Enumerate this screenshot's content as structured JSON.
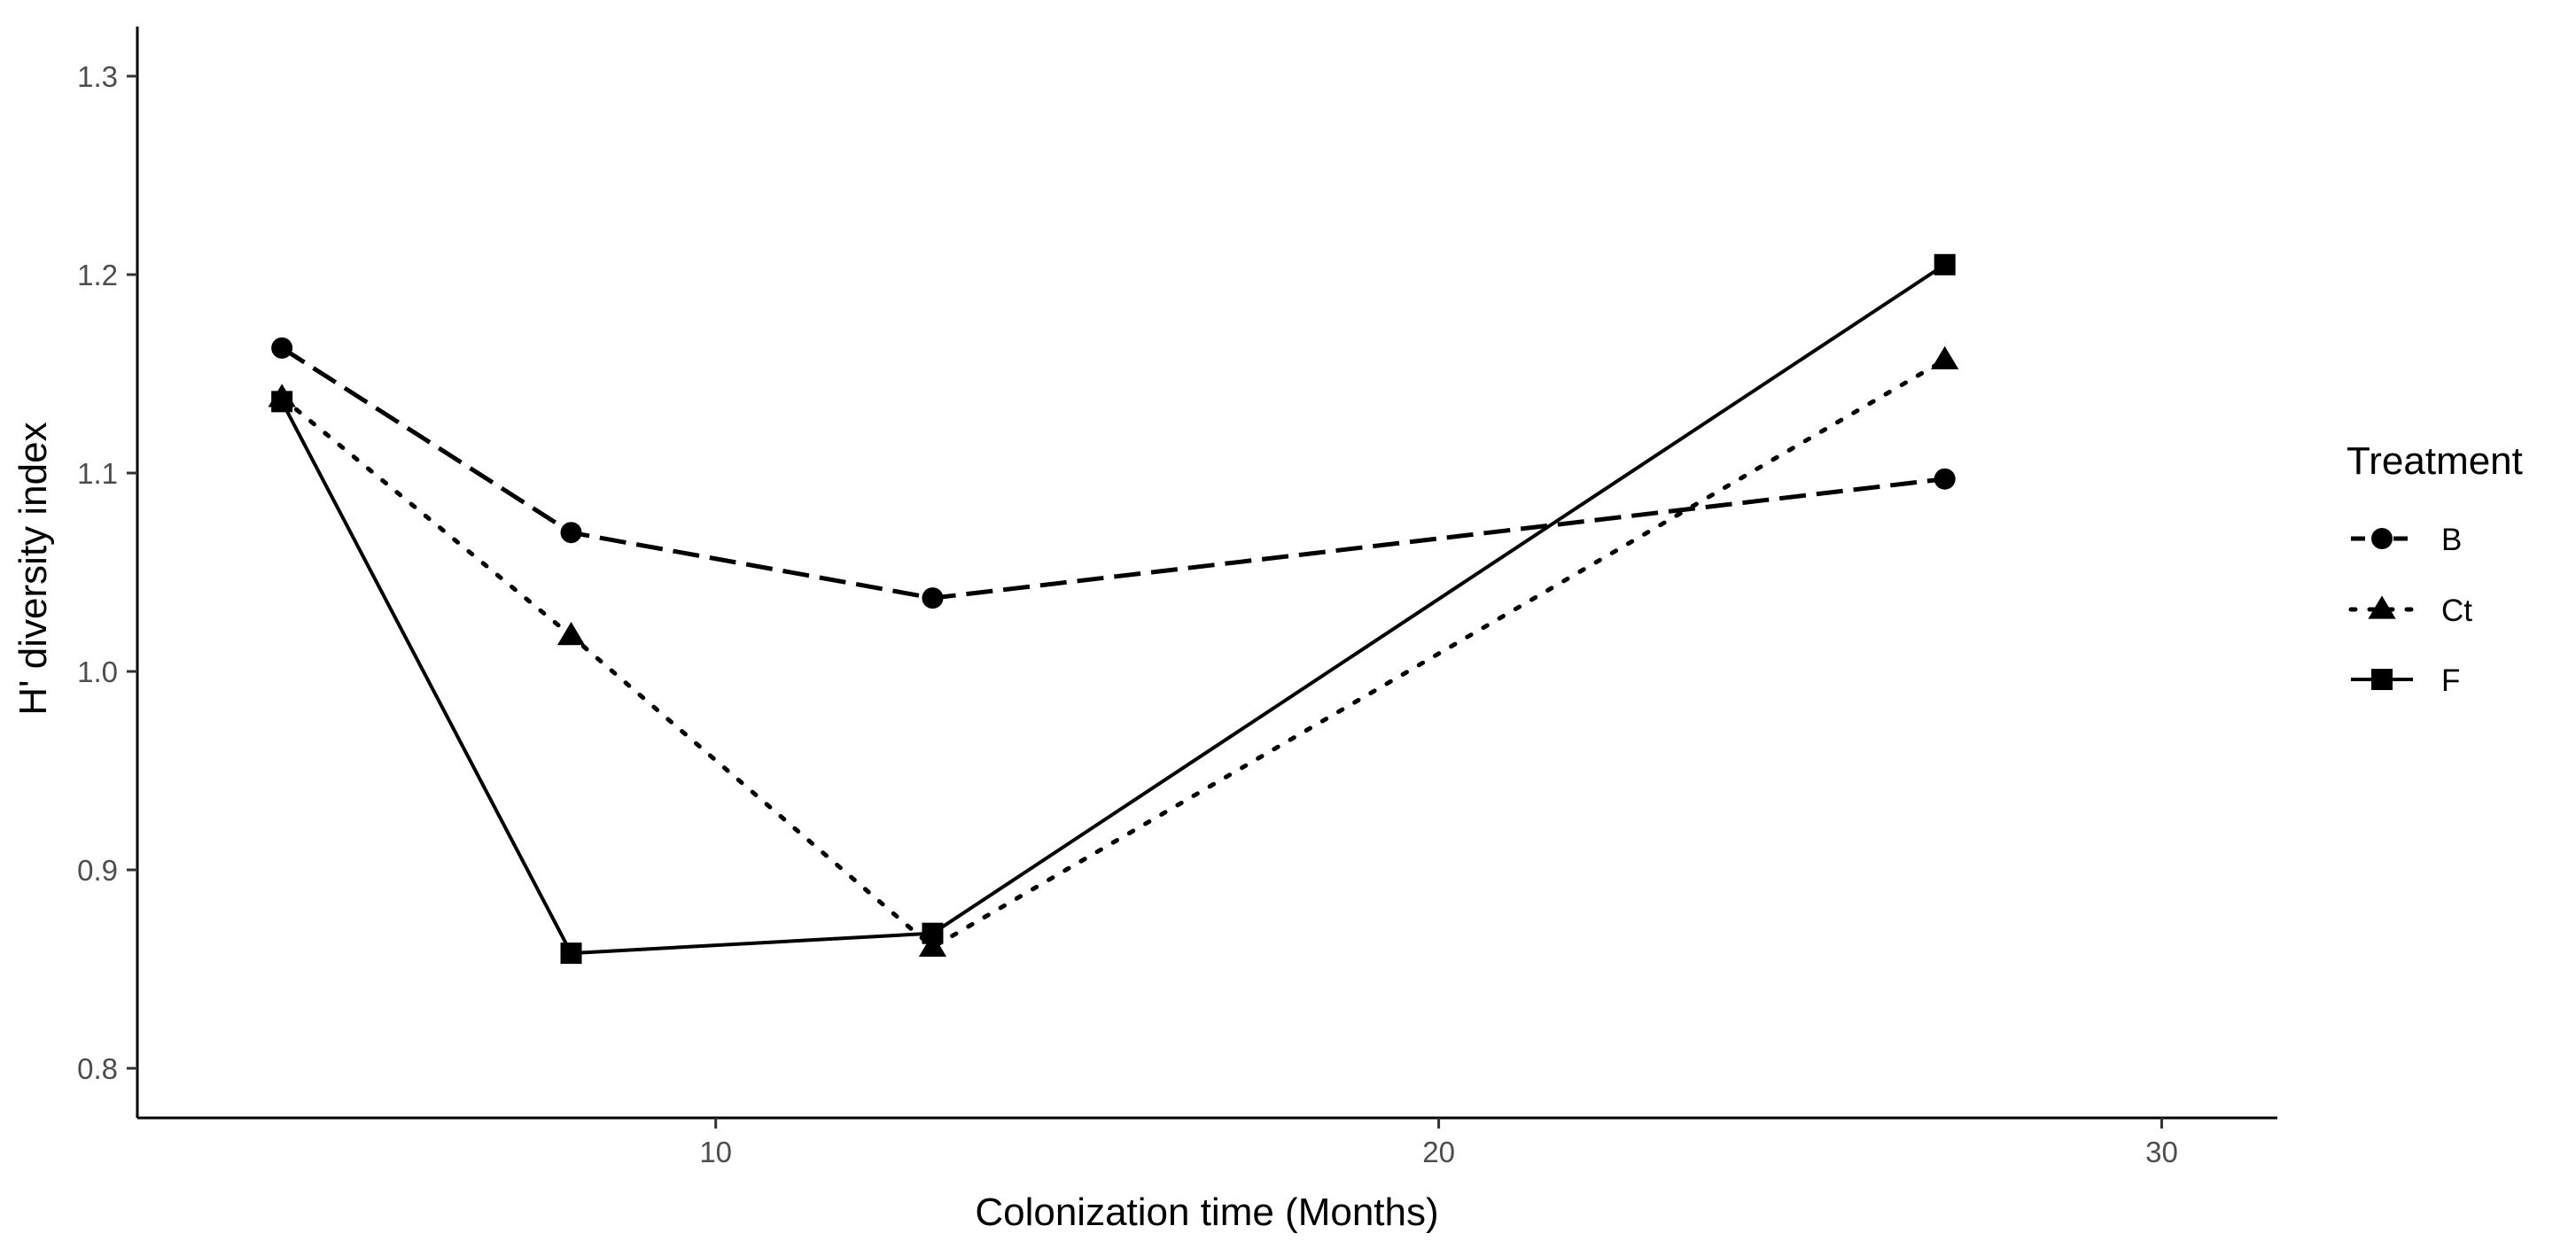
{
  "chart_data": {
    "type": "line",
    "title": "",
    "xlabel": "Colonization time (Months)",
    "ylabel": "H' diversity index",
    "xlim": [
      2,
      31.6
    ],
    "ylim": [
      0.775,
      1.325
    ],
    "xticks": [
      10,
      20,
      30
    ],
    "yticks": [
      0.8,
      0.9,
      1.0,
      1.1,
      1.2,
      1.3
    ],
    "ytick_labels": [
      "0.8",
      "0.9",
      "1.0",
      "1.1",
      "1.2",
      "1.3"
    ],
    "xtick_labels": [
      "10",
      "20",
      "30"
    ],
    "grid": false,
    "legend": {
      "title": "Treatment",
      "placement": "right"
    },
    "x": [
      4,
      8,
      13,
      27
    ],
    "series": [
      {
        "name": "B",
        "values": [
          1.163,
          1.07,
          1.037,
          1.097
        ],
        "marker": "circle",
        "linestyle": "dashed",
        "color": "#000000"
      },
      {
        "name": "Ct",
        "values": [
          1.138,
          1.018,
          0.861,
          1.157
        ],
        "marker": "triangle",
        "linestyle": "dotted",
        "color": "#000000"
      },
      {
        "name": "F",
        "values": [
          1.136,
          0.858,
          0.868,
          1.205
        ],
        "marker": "square",
        "linestyle": "solid",
        "color": "#000000"
      }
    ]
  }
}
